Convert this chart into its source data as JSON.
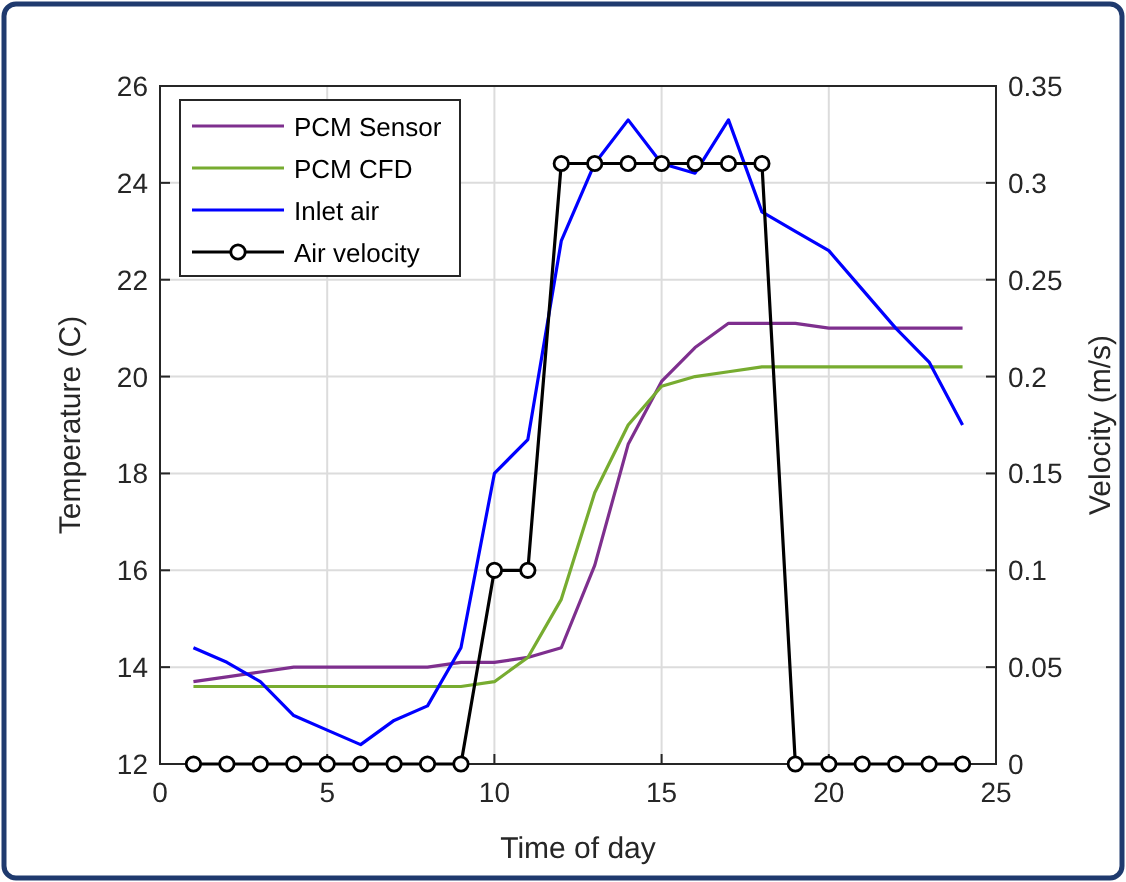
{
  "chart_data": {
    "type": "line",
    "xlabel": "Time of day",
    "ylabel": "Temperature (C)",
    "y2label": "Velocity (m/s)",
    "x": [
      1,
      2,
      3,
      4,
      5,
      6,
      7,
      8,
      9,
      10,
      11,
      12,
      13,
      14,
      15,
      16,
      17,
      18,
      19,
      20,
      21,
      22,
      23,
      24
    ],
    "xlim": [
      0,
      25
    ],
    "xticks": [
      0,
      5,
      10,
      15,
      20,
      25
    ],
    "ylim": [
      12,
      26
    ],
    "yticks": [
      12,
      14,
      16,
      18,
      20,
      22,
      24,
      26
    ],
    "y2lim": [
      0,
      0.35
    ],
    "y2ticks": [
      0,
      0.05,
      0.1,
      0.15,
      0.2,
      0.25,
      0.3,
      0.35
    ],
    "grid": true,
    "legend": "top left",
    "series": [
      {
        "name": "PCM Sensor",
        "color": "#7e2f8e",
        "marker": "none",
        "values": [
          13.7,
          13.8,
          13.9,
          14,
          14,
          14,
          14,
          14,
          14.1,
          14.1,
          14.2,
          14.4,
          16.1,
          18.6,
          19.9,
          20.6,
          21.1,
          21.1,
          21.1,
          21,
          21,
          21,
          21,
          21
        ]
      },
      {
        "name": "PCM CFD",
        "color": "#77ac30",
        "marker": "none",
        "values": [
          13.6,
          13.6,
          13.6,
          13.6,
          13.6,
          13.6,
          13.6,
          13.6,
          13.6,
          13.7,
          14.2,
          15.4,
          17.6,
          19,
          19.8,
          20,
          20.1,
          20.2,
          20.2,
          20.2,
          20.2,
          20.2,
          20.2,
          20.2
        ]
      },
      {
        "name": "Inlet air",
        "color": "#0000ff",
        "marker": "none",
        "values": [
          14.4,
          14.1,
          13.7,
          13,
          12.7,
          12.4,
          12.9,
          13.2,
          14.4,
          18,
          18.7,
          22.8,
          24.4,
          25.3,
          24.4,
          24.2,
          25.3,
          23.4,
          23,
          22.6,
          21.8,
          21,
          20.3,
          19
        ]
      },
      {
        "name": "Air velocity",
        "color": "#000000",
        "marker": "circle",
        "axis": "y2",
        "values": [
          0,
          0,
          0,
          0,
          0,
          0,
          0,
          0,
          0,
          0.1,
          0.1,
          0.31,
          0.31,
          0.31,
          0.31,
          0.31,
          0.31,
          0.31,
          0,
          0,
          0,
          0,
          0,
          0
        ]
      }
    ]
  }
}
